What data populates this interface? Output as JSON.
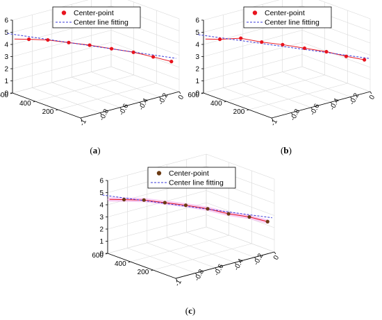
{
  "figure": {
    "legend": {
      "points_label": "Center-point",
      "fit_label": "Center line fitting"
    }
  },
  "chart_data": [
    {
      "type": "scatter3d",
      "caption": "(a)",
      "axes": {
        "x_ticks": [
          "-1",
          "-0.8",
          "-0.6",
          "-0.4",
          "-0.2",
          "0"
        ],
        "x_range": [
          -1,
          0
        ],
        "y_ticks": [
          "200",
          "400",
          "600"
        ],
        "y_range": [
          0,
          600
        ],
        "z_ticks": [
          "0",
          "1",
          "2",
          "3",
          "4",
          "5",
          "6"
        ],
        "z_range": [
          0,
          6
        ],
        "grid": true
      },
      "legend_position": "top",
      "colors": {
        "point": "#e8141e",
        "line": "#e8141e",
        "fit": "#3a3ad8"
      },
      "series": [
        {
          "name": "Center-point",
          "kind": "points",
          "x": [
            -0.88,
            -0.78,
            -0.66,
            -0.54,
            -0.41,
            -0.28,
            -0.16,
            -0.05
          ],
          "y": [
            560,
            480,
            400,
            320,
            240,
            160,
            90,
            25
          ],
          "z": [
            4.3,
            4.3,
            4.1,
            3.9,
            3.6,
            3.3,
            2.9,
            2.5
          ]
        },
        {
          "kind": "line",
          "x": [
            -0.98,
            -0.88,
            -0.78,
            -0.66,
            -0.54,
            -0.41,
            -0.28,
            -0.16,
            -0.05
          ],
          "y": [
            600,
            560,
            480,
            400,
            320,
            240,
            160,
            90,
            25
          ],
          "z": [
            4.4,
            4.3,
            4.3,
            4.1,
            3.9,
            3.6,
            3.3,
            2.9,
            2.5
          ]
        },
        {
          "name": "Center line fitting",
          "kind": "dashed",
          "x": [
            -1.03,
            -0.02
          ],
          "y": [
            620,
            10
          ],
          "z": [
            4.9,
            2.75
          ]
        }
      ]
    },
    {
      "type": "scatter3d",
      "caption": "(b)",
      "axes": {
        "x_ticks": [
          "-1",
          "-0.8",
          "-0.6",
          "-0.4",
          "-0.2",
          "0"
        ],
        "x_range": [
          -1,
          0
        ],
        "y_ticks": [
          "200",
          "400",
          "600"
        ],
        "y_range": [
          0,
          600
        ],
        "z_ticks": [
          "0",
          "1",
          "2",
          "3",
          "4",
          "5",
          "6"
        ],
        "z_range": [
          0,
          6
        ],
        "grid": true
      },
      "legend_position": "top",
      "colors": {
        "point": "#e8141e",
        "line": "#e8141e",
        "fit": "#3a3ad8"
      },
      "series": [
        {
          "name": "Center-point",
          "kind": "points",
          "x": [
            -0.88,
            -0.76,
            -0.64,
            -0.52,
            -0.39,
            -0.26,
            -0.14,
            -0.03
          ],
          "y": [
            560,
            480,
            400,
            320,
            240,
            160,
            90,
            25
          ],
          "z": [
            4.3,
            4.4,
            4.1,
            3.9,
            3.6,
            3.3,
            2.9,
            2.6
          ]
        },
        {
          "kind": "line",
          "x": [
            -0.98,
            -0.88,
            -0.76,
            -0.64,
            -0.52,
            -0.39,
            -0.26,
            -0.14,
            -0.03
          ],
          "y": [
            600,
            560,
            480,
            400,
            320,
            240,
            160,
            90,
            25
          ],
          "z": [
            4.4,
            4.3,
            4.4,
            4.1,
            3.9,
            3.6,
            3.3,
            2.9,
            2.6
          ]
        },
        {
          "name": "Center line fitting",
          "kind": "dashed",
          "x": [
            -1.03,
            0.0
          ],
          "y": [
            620,
            10
          ],
          "z": [
            4.8,
            2.7
          ]
        }
      ]
    },
    {
      "type": "scatter3d",
      "caption": "(c)",
      "axes": {
        "x_ticks": [
          "-1",
          "-0.8",
          "-0.6",
          "-0.4",
          "-0.2",
          "0"
        ],
        "x_range": [
          -1,
          0
        ],
        "y_ticks": [
          "200",
          "400",
          "600"
        ],
        "y_range": [
          0,
          600
        ],
        "z_ticks": [
          "0",
          "1",
          "2",
          "3",
          "4",
          "5",
          "6"
        ],
        "z_range": [
          0,
          6
        ],
        "grid": true
      },
      "legend_position": "top",
      "colors": {
        "point": "#6b3a12",
        "line": "#e8141e",
        "fit": "#3a3ad8",
        "band": "#f4b8ee"
      },
      "series": [
        {
          "name": "Center-point",
          "kind": "points",
          "x": [
            -0.88,
            -0.77,
            -0.65,
            -0.53,
            -0.4,
            -0.28,
            -0.15,
            -0.04
          ],
          "y": [
            560,
            480,
            400,
            320,
            240,
            160,
            90,
            25
          ],
          "z": [
            4.3,
            4.3,
            4.1,
            3.9,
            3.6,
            3.2,
            2.9,
            2.5
          ]
        },
        {
          "kind": "line",
          "x": [
            -0.98,
            -0.88,
            -0.77,
            -0.65,
            -0.53,
            -0.4,
            -0.28,
            -0.15,
            -0.04
          ],
          "y": [
            600,
            560,
            480,
            400,
            320,
            240,
            160,
            90,
            25
          ],
          "z": [
            4.4,
            4.3,
            4.3,
            4.1,
            3.9,
            3.6,
            3.2,
            2.9,
            2.5
          ]
        },
        {
          "name": "Center line fitting",
          "kind": "dashed",
          "x": [
            -1.03,
            -0.01
          ],
          "y": [
            620,
            10
          ],
          "z": [
            4.8,
            2.8
          ]
        }
      ]
    }
  ]
}
